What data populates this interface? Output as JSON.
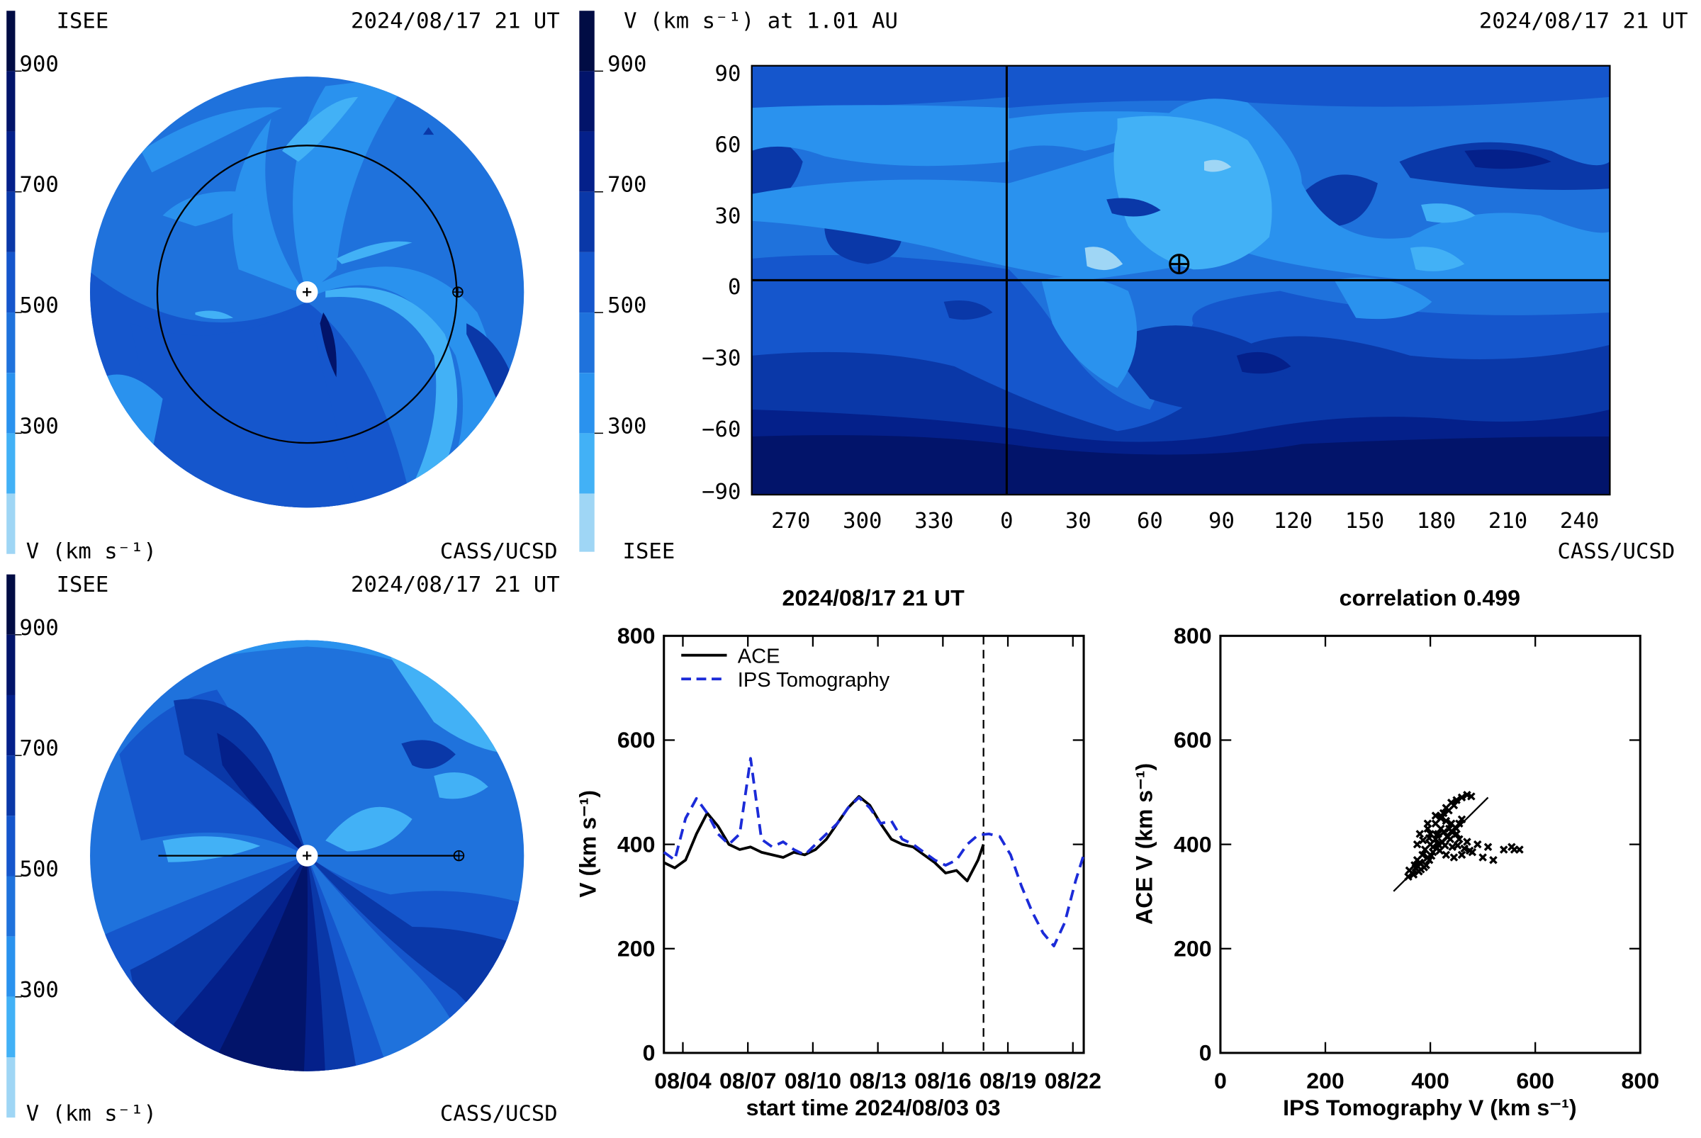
{
  "colors": {
    "bands": [
      "#9fd6f5",
      "#42b1f6",
      "#2a92ee",
      "#1f72dc",
      "#1556cc",
      "#0a38a8",
      "#04208a",
      "#02146a",
      "#010c44"
    ],
    "series_ace": "#000000",
    "series_ips": "#1b2bd8"
  },
  "polar_top": {
    "left_label": "ISEE",
    "date": "2024/08/17 21 UT",
    "units": "V (km s⁻¹)",
    "credit": "CASS/UCSD",
    "ticks": [
      "900",
      "700",
      "500",
      "300"
    ]
  },
  "map": {
    "title": "V (km s⁻¹) at 1.01 AU",
    "date": "2024/08/17 21 UT",
    "left_label": "ISEE",
    "credit": "CASS/UCSD",
    "cbar_ticks": [
      "900",
      "700",
      "500",
      "300"
    ],
    "xticks": [
      "270",
      "300",
      "330",
      "0",
      "30",
      "60",
      "90",
      "120",
      "150",
      "180",
      "210",
      "240"
    ],
    "yticks": [
      "90",
      "60",
      "30",
      "0",
      "−30",
      "−60",
      "−90"
    ]
  },
  "polar_bottom": {
    "left_label": "ISEE",
    "date": "2024/08/17 21 UT",
    "units": "V (km s⁻¹)",
    "credit": "CASS/UCSD",
    "ticks": [
      "900",
      "700",
      "500",
      "300"
    ]
  },
  "chart_data": [
    {
      "type": "line",
      "title": "2024/08/17 21 UT",
      "xlabel": "start time 2024/08/03 03",
      "ylabel": "V (km s⁻¹)",
      "ylim": [
        0,
        800
      ],
      "xlim": [
        "08/03 03:00",
        "08/22 12:00"
      ],
      "x_ticks": [
        "08/04",
        "08/07",
        "08/10",
        "08/13",
        "08/16",
        "08/19",
        "08/22"
      ],
      "y_ticks": [
        "0",
        "200",
        "400",
        "600",
        "800"
      ],
      "legend_position": "top-left",
      "now_marker": "08/17 21:00",
      "series": [
        {
          "name": "ACE",
          "x": [
            "08/03 03:00",
            "08/03 15:00",
            "08/04 03:00",
            "08/04 15:00",
            "08/05 03:00",
            "08/05 15:00",
            "08/06 03:00",
            "08/06 15:00",
            "08/07 03:00",
            "08/07 15:00",
            "08/08 03:00",
            "08/08 15:00",
            "08/09 03:00",
            "08/09 15:00",
            "08/10 03:00",
            "08/10 15:00",
            "08/11 03:00",
            "08/11 15:00",
            "08/12 03:00",
            "08/12 15:00",
            "08/13 03:00",
            "08/13 15:00",
            "08/14 03:00",
            "08/14 15:00",
            "08/15 03:00",
            "08/15 15:00",
            "08/16 03:00",
            "08/16 15:00",
            "08/17 03:00",
            "08/17 15:00",
            "08/17 21:00"
          ],
          "values": [
            365,
            355,
            370,
            420,
            460,
            435,
            400,
            390,
            395,
            385,
            380,
            375,
            385,
            380,
            390,
            410,
            440,
            470,
            492,
            475,
            440,
            410,
            400,
            395,
            380,
            365,
            345,
            350,
            330,
            370,
            400
          ]
        },
        {
          "name": "IPS Tomography",
          "x": [
            "08/03 03:00",
            "08/03 15:00",
            "08/04 03:00",
            "08/04 15:00",
            "08/05 03:00",
            "08/05 15:00",
            "08/06 03:00",
            "08/06 15:00",
            "08/07 03:00",
            "08/07 15:00",
            "08/08 03:00",
            "08/08 15:00",
            "08/09 03:00",
            "08/09 15:00",
            "08/10 03:00",
            "08/10 15:00",
            "08/11 03:00",
            "08/11 15:00",
            "08/12 03:00",
            "08/12 15:00",
            "08/13 03:00",
            "08/13 15:00",
            "08/14 03:00",
            "08/14 15:00",
            "08/15 03:00",
            "08/15 15:00",
            "08/16 03:00",
            "08/16 15:00",
            "08/17 03:00",
            "08/17 15:00",
            "08/18 03:00",
            "08/18 15:00",
            "08/19 03:00",
            "08/19 15:00",
            "08/20 03:00",
            "08/20 15:00",
            "08/21 03:00",
            "08/21 15:00",
            "08/22 03:00",
            "08/22 12:00"
          ],
          "values": [
            385,
            370,
            450,
            488,
            460,
            420,
            400,
            420,
            565,
            410,
            395,
            405,
            390,
            380,
            400,
            420,
            440,
            470,
            490,
            470,
            440,
            445,
            410,
            400,
            385,
            370,
            360,
            370,
            400,
            418,
            420,
            415,
            380,
            320,
            270,
            230,
            205,
            250,
            330,
            380
          ]
        }
      ]
    },
    {
      "type": "scatter",
      "title": "correlation 0.499",
      "xlabel": "IPS Tomography V (km s⁻¹)",
      "ylabel": "ACE V (km s⁻¹)",
      "xlim": [
        0,
        800
      ],
      "ylim": [
        0,
        800
      ],
      "x_ticks": [
        "0",
        "200",
        "400",
        "600",
        "800"
      ],
      "y_ticks": [
        "0",
        "200",
        "400",
        "600",
        "800"
      ],
      "fit_line": {
        "x": [
          330,
          510
        ],
        "y": [
          310,
          490
        ]
      },
      "points": [
        [
          360,
          350
        ],
        [
          365,
          345
        ],
        [
          370,
          360
        ],
        [
          375,
          370
        ],
        [
          380,
          365
        ],
        [
          385,
          380
        ],
        [
          372,
          355
        ],
        [
          390,
          390
        ],
        [
          395,
          375
        ],
        [
          400,
          400
        ],
        [
          405,
          395
        ],
        [
          410,
          410
        ],
        [
          400,
          420
        ],
        [
          395,
          430
        ],
        [
          410,
          440
        ],
        [
          415,
          420
        ],
        [
          420,
          450
        ],
        [
          425,
          460
        ],
        [
          430,
          470
        ],
        [
          440,
          480
        ],
        [
          450,
          485
        ],
        [
          460,
          490
        ],
        [
          470,
          495
        ],
        [
          478,
          492
        ],
        [
          445,
          475
        ],
        [
          435,
          465
        ],
        [
          420,
          430
        ],
        [
          415,
          400
        ],
        [
          405,
          385
        ],
        [
          398,
          370
        ],
        [
          392,
          360
        ],
        [
          382,
          352
        ],
        [
          368,
          342
        ],
        [
          358,
          338
        ],
        [
          378,
          348
        ],
        [
          388,
          356
        ],
        [
          402,
          378
        ],
        [
          412,
          392
        ],
        [
          422,
          405
        ],
        [
          432,
          415
        ],
        [
          440,
          425
        ],
        [
          448,
          432
        ],
        [
          455,
          440
        ],
        [
          460,
          448
        ],
        [
          438,
          410
        ],
        [
          428,
          398
        ],
        [
          418,
          388
        ],
        [
          430,
          380
        ],
        [
          445,
          375
        ],
        [
          460,
          380
        ],
        [
          480,
          385
        ],
        [
          500,
          375
        ],
        [
          520,
          370
        ],
        [
          540,
          390
        ],
        [
          560,
          390
        ],
        [
          570,
          390
        ],
        [
          555,
          395
        ],
        [
          510,
          395
        ],
        [
          490,
          400
        ],
        [
          470,
          405
        ],
        [
          455,
          410
        ],
        [
          450,
          420
        ],
        [
          440,
          440
        ],
        [
          430,
          445
        ],
        [
          420,
          455
        ],
        [
          410,
          455
        ],
        [
          395,
          440
        ],
        [
          380,
          420
        ],
        [
          375,
          400
        ],
        [
          386,
          408
        ],
        [
          398,
          412
        ],
        [
          412,
          418
        ],
        [
          426,
          424
        ],
        [
          436,
          430
        ],
        [
          442,
          395
        ],
        [
          452,
          398
        ],
        [
          465,
          392
        ],
        [
          475,
          388
        ]
      ]
    }
  ]
}
